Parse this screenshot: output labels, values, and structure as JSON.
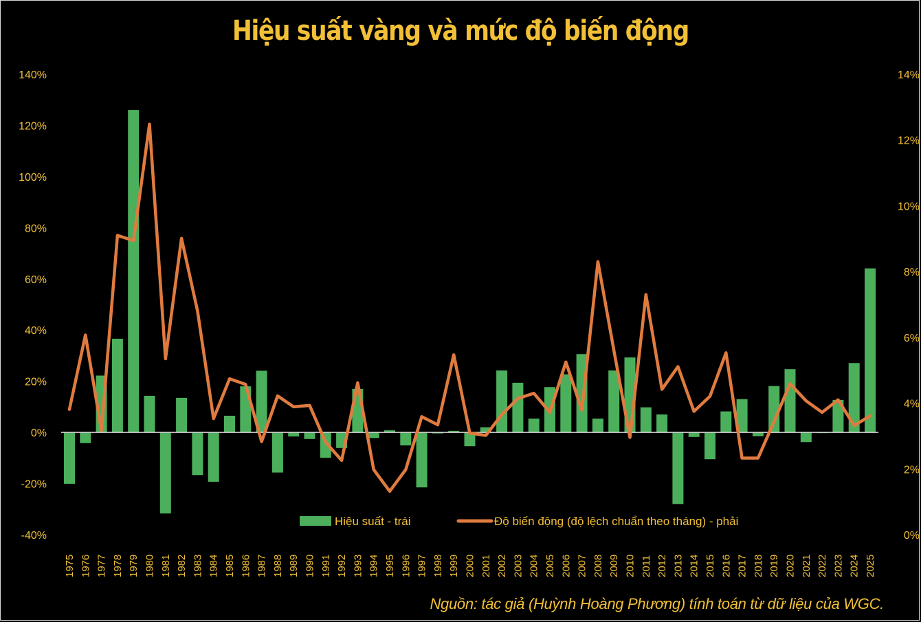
{
  "title": "Hiệu suất vàng và mức độ biến động",
  "source": "Nguồn: tác giả (Huỳnh Hoàng Phương) tính toán từ dữ liệu của WGC.",
  "colors": {
    "bar": "#4caf5c",
    "line": "#e07b3f",
    "text": "#f2c037",
    "background": "#000000",
    "zero_line": "#d9d9d9"
  },
  "legend": [
    {
      "label": "Hiệu suất - trái",
      "type": "bar"
    },
    {
      "label": "Độ biến động (độ lệch chuẩn theo tháng) - phải",
      "type": "line"
    }
  ],
  "chart_data": {
    "type": "bar+line",
    "title": "Hiệu suất vàng và mức độ biến động",
    "xlabel": "",
    "ylabel_left": "Hiệu suất",
    "ylabel_right": "Độ biến động (độ lệch chuẩn theo tháng)",
    "ylim_left": [
      -40,
      140
    ],
    "ylim_right": [
      0,
      14
    ],
    "yticks_left": [
      "140%",
      "120%",
      "100%",
      "80%",
      "60%",
      "40%",
      "20%",
      "0%",
      "-20%",
      "-40%"
    ],
    "yticks_right": [
      "14%",
      "12%",
      "10%",
      "8%",
      "6%",
      "4%",
      "2%",
      "0%"
    ],
    "grid": false,
    "legend_position": "bottom-inside",
    "categories": [
      "1975",
      "1976",
      "1977",
      "1978",
      "1979",
      "1980",
      "1981",
      "1982",
      "1983",
      "1984",
      "1985",
      "1986",
      "1987",
      "1988",
      "1989",
      "1990",
      "1991",
      "1992",
      "1993",
      "1994",
      "1995",
      "1996",
      "1997",
      "1998",
      "1999",
      "2000",
      "2001",
      "2002",
      "2003",
      "2004",
      "2005",
      "2006",
      "2007",
      "2008",
      "2009",
      "2010",
      "2011",
      "2012",
      "2013",
      "2014",
      "2015",
      "2016",
      "2017",
      "2018",
      "2019",
      "2020",
      "2021",
      "2022",
      "2023",
      "2024",
      "2025"
    ],
    "series": [
      {
        "name": "Hiệu suất - trái",
        "type": "bar",
        "axis": "left",
        "unit": "%",
        "values": [
          -20.1,
          -4.2,
          22.2,
          36.6,
          126.0,
          14.3,
          -31.7,
          13.5,
          -16.7,
          -19.3,
          6.5,
          18.0,
          24.1,
          -15.7,
          -1.6,
          -2.6,
          -9.9,
          -6.1,
          17.0,
          -2.2,
          0.8,
          -5.1,
          -21.5,
          -0.4,
          0.6,
          -5.4,
          2.0,
          24.2,
          19.4,
          5.4,
          17.7,
          22.7,
          30.6,
          5.4,
          24.2,
          29.3,
          9.8,
          7.0,
          -28.0,
          -1.8,
          -10.5,
          8.2,
          13.0,
          -1.5,
          18.1,
          24.7,
          -3.8,
          -0.3,
          12.7,
          27.1,
          64.1
        ]
      },
      {
        "name": "Độ biến động (độ lệch chuẩn theo tháng) - phải",
        "type": "line",
        "axis": "right",
        "unit": "%",
        "values": [
          3.81,
          6.07,
          3.17,
          9.1,
          8.94,
          12.48,
          5.35,
          9.01,
          6.8,
          3.53,
          4.74,
          4.57,
          2.83,
          4.22,
          3.89,
          3.93,
          2.81,
          2.26,
          4.62,
          1.98,
          1.32,
          1.98,
          3.59,
          3.34,
          5.47,
          3.09,
          3.02,
          3.65,
          4.14,
          4.3,
          3.72,
          5.25,
          3.79,
          8.3,
          5.6,
          2.96,
          7.3,
          4.42,
          5.11,
          3.75,
          4.21,
          5.53,
          2.33,
          2.33,
          3.44,
          4.59,
          4.07,
          3.72,
          4.1,
          3.32,
          3.61
        ]
      }
    ]
  }
}
